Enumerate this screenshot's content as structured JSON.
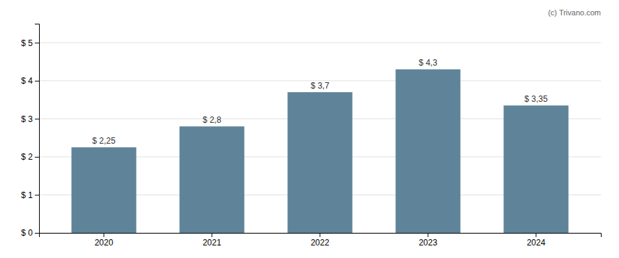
{
  "chart_data": {
    "type": "bar",
    "categories": [
      "2020",
      "2021",
      "2022",
      "2023",
      "2024"
    ],
    "values": [
      2.25,
      2.8,
      3.7,
      4.3,
      3.35
    ],
    "value_labels": [
      "$ 2,25",
      "$ 2,8",
      "$ 3,7",
      "$ 4,3",
      "$ 3,35"
    ],
    "color": "#5f8499",
    "ylim": [
      0,
      5.5
    ],
    "yticks": [
      {
        "value": 0,
        "label": "$ 0"
      },
      {
        "value": 1,
        "label": "$ 1"
      },
      {
        "value": 2,
        "label": "$ 2"
      },
      {
        "value": 3,
        "label": "$ 3"
      },
      {
        "value": 4,
        "label": "$ 4"
      },
      {
        "value": 5,
        "label": "$ 5"
      }
    ],
    "grid": true,
    "data_labels": true,
    "annotations": [
      "(c) Trivano.com"
    ]
  }
}
